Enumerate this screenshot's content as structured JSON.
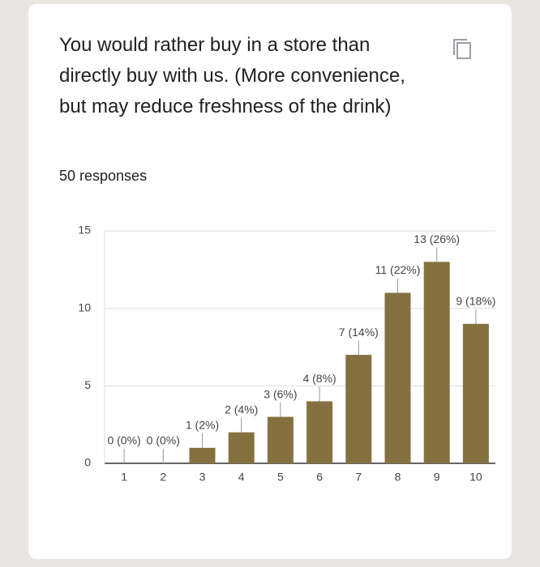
{
  "chart_data": {
    "type": "bar",
    "title": "You would rather buy in a store than directly buy with us. (More convenience, but may reduce freshness of the drink)",
    "subtitle": "50 responses",
    "categories": [
      "1",
      "2",
      "3",
      "4",
      "5",
      "6",
      "7",
      "8",
      "9",
      "10"
    ],
    "values": [
      0,
      0,
      1,
      2,
      3,
      4,
      7,
      11,
      13,
      9
    ],
    "value_labels": [
      "0 (0%)",
      "0 (0%)",
      "1 (2%)",
      "2 (4%)",
      "3 (6%)",
      "4 (8%)",
      "7 (14%)",
      "11 (22%)",
      "13 (26%)",
      "9 (18%)"
    ],
    "color": "#857140",
    "ylim": [
      0,
      15
    ],
    "yticks": [
      0,
      5,
      10,
      15
    ],
    "grid": true
  }
}
